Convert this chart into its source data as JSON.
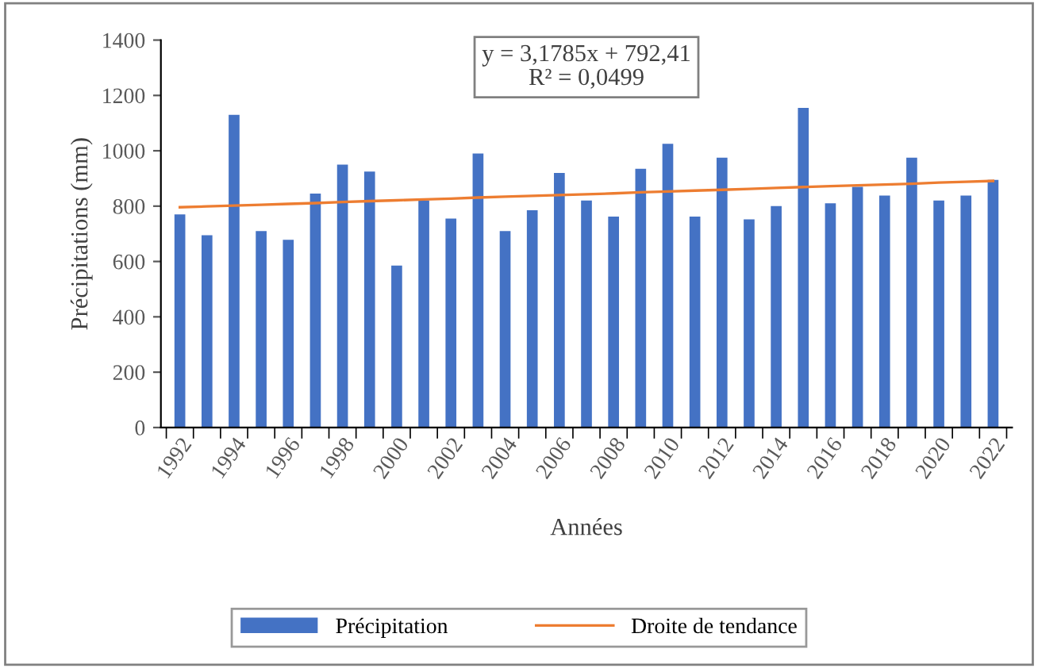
{
  "chart_data": {
    "type": "bar",
    "xlabel": "Années",
    "ylabel": "Précipitations (mm)",
    "categories": [
      "1992",
      null,
      "1994",
      null,
      "1996",
      null,
      "1998",
      null,
      "2000",
      null,
      "2002",
      null,
      "2004",
      null,
      "2006",
      null,
      "2008",
      null,
      "2010",
      null,
      "2012",
      null,
      "2014",
      null,
      "2016",
      null,
      "2018",
      null,
      "2020",
      null,
      "2022"
    ],
    "series": [
      {
        "name": "Précipitation",
        "color": "#4472c4",
        "values": [
          770,
          695,
          1130,
          710,
          678,
          845,
          950,
          925,
          585,
          820,
          755,
          990,
          710,
          785,
          920,
          820,
          762,
          935,
          1025,
          762,
          975,
          752,
          800,
          1155,
          810,
          870,
          838,
          975,
          820,
          838,
          895
        ]
      },
      {
        "name": "Droite de tendance",
        "type": "line",
        "color": "#ed7d31",
        "values": [
          796,
          799,
          802,
          805,
          808,
          811,
          815,
          818,
          821,
          824,
          827,
          831,
          834,
          837,
          840,
          843,
          846,
          850,
          853,
          856,
          859,
          862,
          866,
          869,
          872,
          875,
          878,
          881,
          885,
          888,
          891
        ]
      }
    ],
    "ylim": [
      0,
      1400
    ],
    "yticks": [
      0,
      200,
      400,
      600,
      800,
      1000,
      1200,
      1400
    ],
    "annotations": [
      "y = 3,1785x + 792,41\nR² = 0,0499"
    ],
    "legend": "bottom",
    "grid": false
  }
}
